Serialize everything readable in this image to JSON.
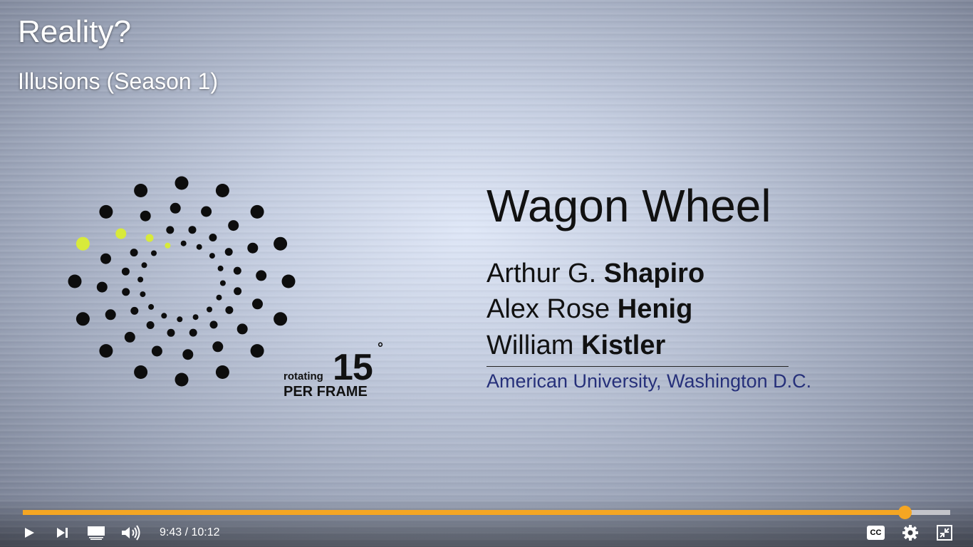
{
  "video": {
    "title": "Reality?",
    "subtitle": "Illusions (Season 1)"
  },
  "slide": {
    "title": "Wagon Wheel",
    "authors": [
      {
        "first": "Arthur G.",
        "last": "Shapiro"
      },
      {
        "first": "Alex Rose",
        "last": "Henig"
      },
      {
        "first": "William",
        "last": "Kistler"
      }
    ],
    "affiliation": "American University, Washington D.C.",
    "rotation_small": "rotating",
    "rotation_value": "15",
    "rotation_degree": "°",
    "rotation_per_frame": "PER FRAME",
    "highlight_color": "#d8ea3a"
  },
  "player": {
    "current_time": "9:43",
    "separator": "/",
    "duration": "10:12",
    "progress_fraction": 0.951,
    "accent_color": "#f5a623",
    "cc_label": "CC",
    "icons": [
      "play-icon",
      "next-icon",
      "miniplayer-icon",
      "volume-icon",
      "captions-icon",
      "settings-icon",
      "exit-fullscreen-icon"
    ]
  }
}
